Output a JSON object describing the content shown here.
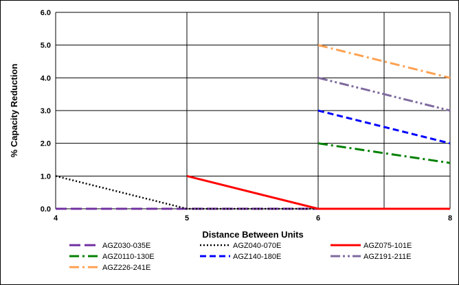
{
  "chart_data": {
    "type": "line",
    "title": "",
    "xlabel": "Distance Between Units",
    "ylabel": "% Capacity Reduction",
    "xlim": [
      4,
      8
    ],
    "ylim": [
      0,
      6
    ],
    "x_tick_labels": [
      "4",
      "5",
      "6",
      "8"
    ],
    "y_tick_labels": [
      "0.0",
      "1.0",
      "2.0",
      "3.0",
      "4.0",
      "5.0",
      "6.0"
    ],
    "grid": true,
    "legend_position": "bottom",
    "series": [
      {
        "name": "AGZ030-035E",
        "color": "#7030A0",
        "dash": "long-dash",
        "points": [
          [
            4,
            0
          ],
          [
            8,
            0
          ]
        ]
      },
      {
        "name": "AGZ040-070E",
        "color": "#000000",
        "dash": "dotted",
        "points": [
          [
            4,
            1
          ],
          [
            5,
            0
          ],
          [
            8,
            0
          ]
        ]
      },
      {
        "name": "AGZ075-101E",
        "color": "#FF0000",
        "dash": "solid",
        "points": [
          [
            5,
            1
          ],
          [
            6,
            0
          ],
          [
            8,
            0
          ]
        ]
      },
      {
        "name": "AGZ0110-130E",
        "color": "#008000",
        "dash": "dash-dot",
        "points": [
          [
            6,
            2
          ],
          [
            8,
            1.4
          ]
        ]
      },
      {
        "name": "AGZ140-180E",
        "color": "#0000FF",
        "dash": "dashed",
        "points": [
          [
            6,
            3
          ],
          [
            8,
            2
          ]
        ]
      },
      {
        "name": "AGZ191-211E",
        "color": "#7F6A9F",
        "dash": "dash-dot-dot",
        "points": [
          [
            6,
            4
          ],
          [
            8,
            3
          ]
        ]
      },
      {
        "name": "AGZ226-241E",
        "color": "#FFA050",
        "dash": "dash-dot",
        "points": [
          [
            6,
            5
          ],
          [
            8,
            4
          ]
        ]
      }
    ]
  }
}
